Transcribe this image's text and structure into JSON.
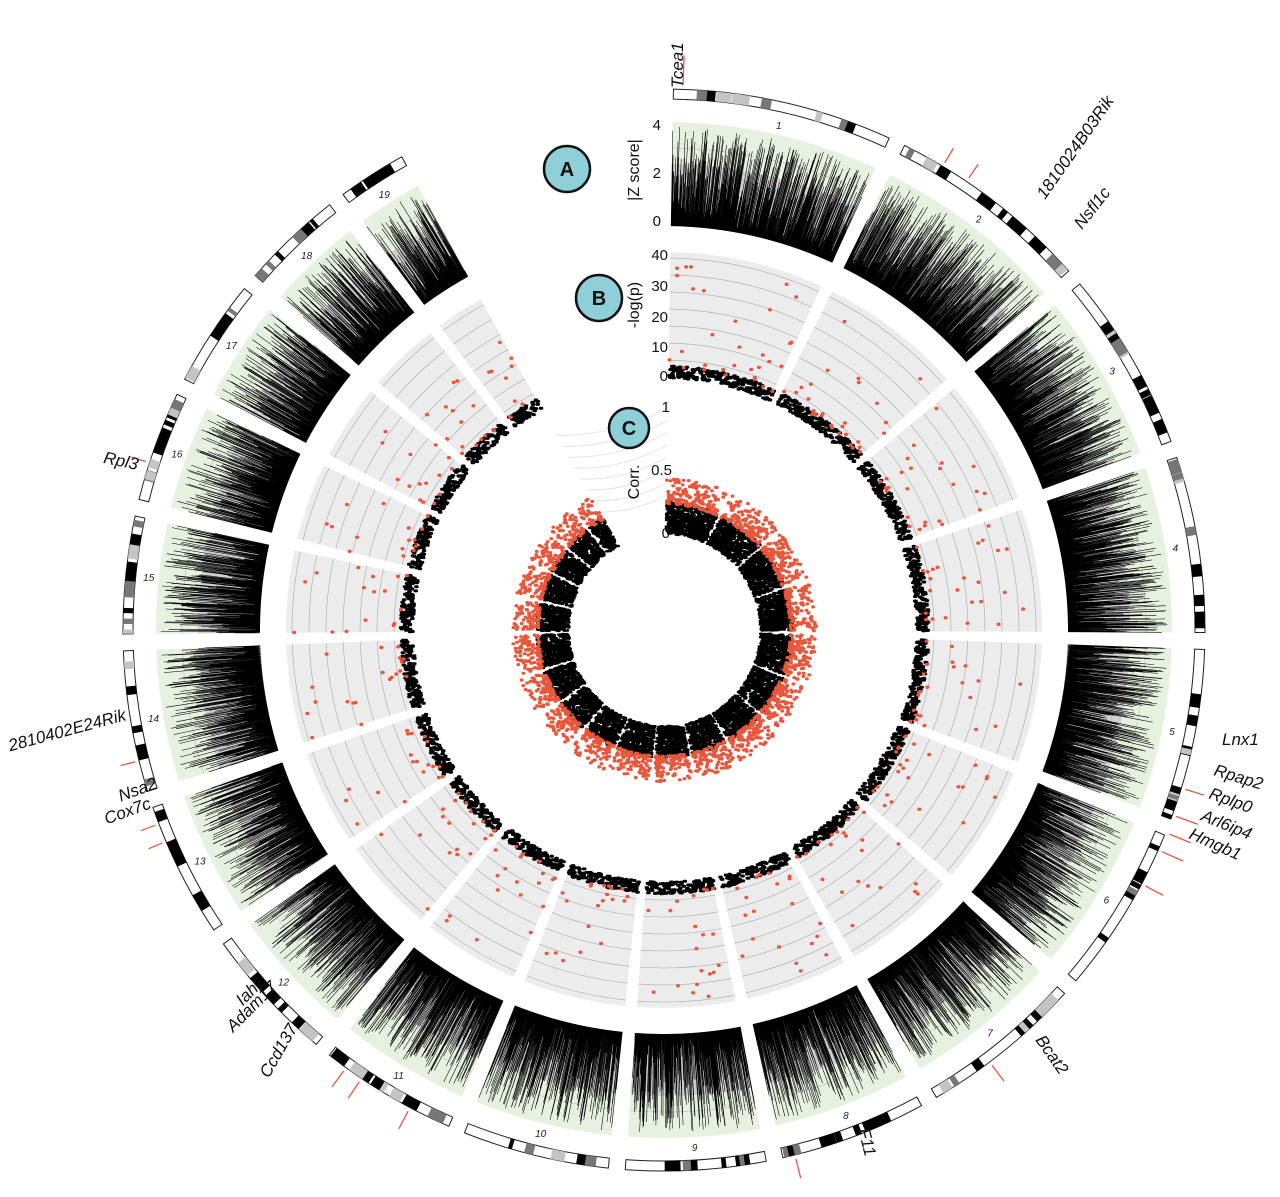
{
  "chromosomes": [
    "1",
    "2",
    "3",
    "4",
    "5",
    "6",
    "7",
    "8",
    "9",
    "10",
    "11",
    "12",
    "13",
    "14",
    "15",
    "16",
    "17",
    "18",
    "19"
  ],
  "panels": [
    {
      "letter": "A",
      "axis_title": "|Z score|",
      "ticks": [
        "0",
        "2",
        "4"
      ]
    },
    {
      "letter": "B",
      "axis_title": "-log(p)",
      "ticks": [
        "0",
        "10",
        "20",
        "30",
        "40"
      ]
    },
    {
      "letter": "C",
      "axis_title": "Corr.",
      "ticks": [
        "0",
        "0.5",
        "1"
      ]
    }
  ],
  "genes": [
    {
      "name": "Tcea1"
    },
    {
      "name": "1810024B03Rik"
    },
    {
      "name": "Nsfl1c"
    },
    {
      "name": "Lnx1"
    },
    {
      "name": "Rpap2"
    },
    {
      "name": "Rplp0"
    },
    {
      "name": "Arl6ip4"
    },
    {
      "name": "Hmgb1"
    },
    {
      "name": "Bcat2"
    },
    {
      "name": "F11"
    },
    {
      "name": "Ccd137"
    },
    {
      "name": "Adam17"
    },
    {
      "name": "Iah1"
    },
    {
      "name": "Cox7c"
    },
    {
      "name": "Nsa2"
    },
    {
      "name": "2810402E24Rik"
    },
    {
      "name": "Rpl3"
    }
  ],
  "colors": {
    "accent_red": "#e8573c",
    "panel_a_bg": "#e6f2df",
    "panel_b_bg": "#ececec",
    "panel_letter_fill": "#8fd0d8",
    "points": "#000000"
  }
}
